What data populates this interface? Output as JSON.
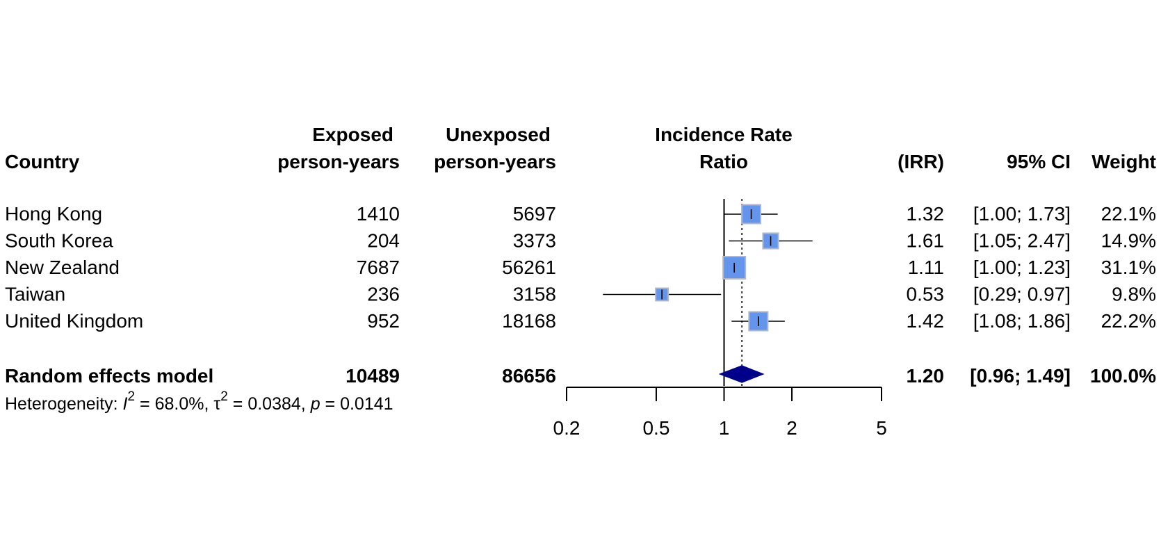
{
  "chart_data": {
    "type": "forest",
    "columns": {
      "country": "Country",
      "exposed": [
        "Exposed",
        "person-years"
      ],
      "unexposed": [
        "Unexposed",
        "person-years"
      ],
      "effect": [
        "Incidence Rate",
        "Ratio"
      ],
      "irr": "(IRR)",
      "ci": "95% CI",
      "weight": "Weight"
    },
    "studies": [
      {
        "name": "Hong Kong",
        "exposed": "1410",
        "unexposed": "5697",
        "irr": 1.32,
        "lower": 1.0,
        "upper": 1.73,
        "irr_text": "1.32",
        "ci_text": "[1.00; 1.73]",
        "weight": 22.1,
        "weight_text": "22.1%"
      },
      {
        "name": "South Korea",
        "exposed": "204",
        "unexposed": "3373",
        "irr": 1.61,
        "lower": 1.05,
        "upper": 2.47,
        "irr_text": "1.61",
        "ci_text": "[1.05; 2.47]",
        "weight": 14.9,
        "weight_text": "14.9%"
      },
      {
        "name": "New Zealand",
        "exposed": "7687",
        "unexposed": "56261",
        "irr": 1.11,
        "lower": 1.0,
        "upper": 1.23,
        "irr_text": "1.11",
        "ci_text": "[1.00; 1.23]",
        "weight": 31.1,
        "weight_text": "31.1%"
      },
      {
        "name": "Taiwan",
        "exposed": "236",
        "unexposed": "3158",
        "irr": 0.53,
        "lower": 0.29,
        "upper": 0.97,
        "irr_text": "0.53",
        "ci_text": "[0.29; 0.97]",
        "weight": 9.8,
        "weight_text": "9.8%"
      },
      {
        "name": "United Kingdom",
        "exposed": "952",
        "unexposed": "18168",
        "irr": 1.42,
        "lower": 1.08,
        "upper": 1.86,
        "irr_text": "1.42",
        "ci_text": "[1.08; 1.86]",
        "weight": 22.2,
        "weight_text": "22.2%"
      }
    ],
    "pooled": {
      "name": "Random effects model",
      "exposed": "10489",
      "unexposed": "86656",
      "irr": 1.2,
      "lower": 0.96,
      "upper": 1.49,
      "irr_text": "1.20",
      "ci_text": "[0.96; 1.49]",
      "weight_text": "100.0%"
    },
    "heterogeneity": {
      "prefix": "Heterogeneity: ",
      "i2_symbol": "I",
      "i2_value": " = 68.0%, ",
      "tau2_symbol": "τ",
      "tau2_value": " = 0.0384, ",
      "p_symbol": "p",
      "p_value": " = 0.0141",
      "sup": "2"
    },
    "x_axis": {
      "scale": "log",
      "ticks": [
        0.2,
        0.5,
        1,
        2,
        5
      ],
      "tick_labels": [
        "0.2",
        "0.5",
        "1",
        "2",
        "5"
      ],
      "range": [
        0.2,
        5
      ]
    },
    "reference_line": 1,
    "pooled_line": 1.2,
    "colors": {
      "square_fill": "#6495ed",
      "square_stroke": "#b0b8c8",
      "diamond": "#00008b",
      "line": "#000000"
    }
  }
}
